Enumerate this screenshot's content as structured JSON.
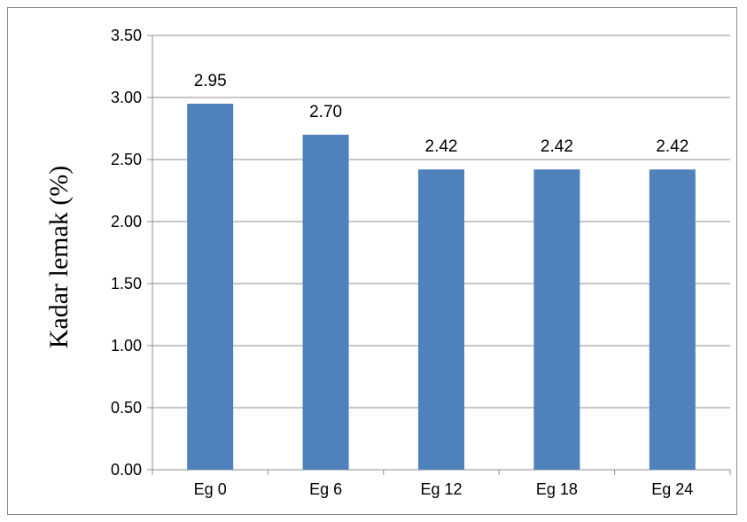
{
  "chart_data": {
    "type": "bar",
    "categories": [
      "Eg 0",
      "Eg 6",
      "Eg 12",
      "Eg 18",
      "Eg 24"
    ],
    "values": [
      2.95,
      2.7,
      2.42,
      2.42,
      2.42
    ],
    "value_labels": [
      "2.95",
      "2.70",
      "2.42",
      "2.42",
      "2.42"
    ],
    "ylabel": "Kadar lemak (%)",
    "xlabel": "",
    "title": "",
    "ylim": [
      0,
      3.5
    ],
    "yticks": [
      "0.00",
      "0.50",
      "1.00",
      "1.50",
      "2.00",
      "2.50",
      "3.00",
      "3.50"
    ],
    "grid": true,
    "legend": "none",
    "bar_color": "#4f81bd",
    "grid_color": "#8c8c8c"
  }
}
